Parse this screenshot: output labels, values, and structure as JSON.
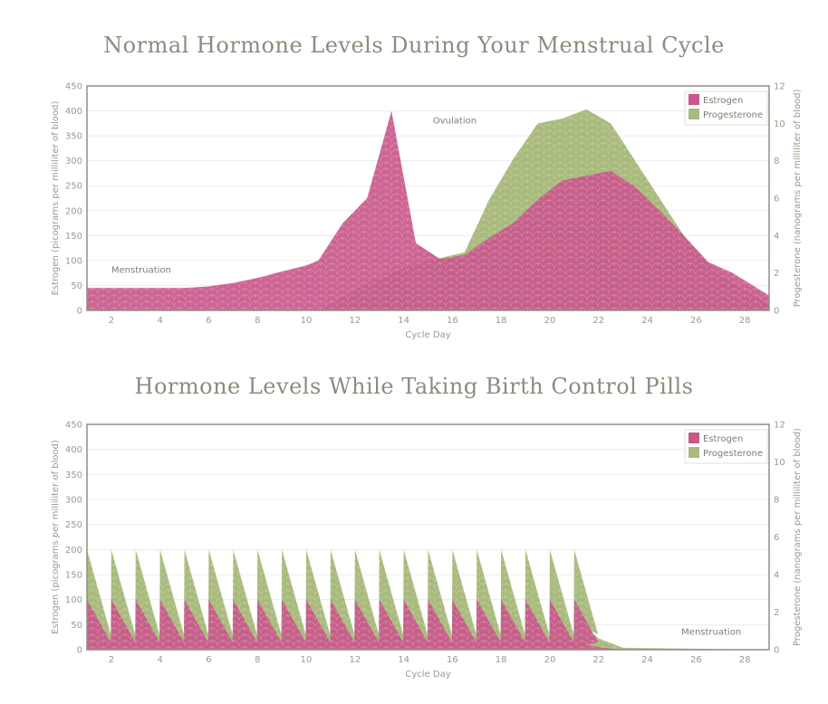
{
  "colors": {
    "estrogen": "#c9578a",
    "progesterone": "#a9ba7d",
    "axis": "#8f8f84",
    "grid": "#ececec"
  },
  "chart_data": [
    {
      "type": "area",
      "title": "Normal Hormone Levels During Your Menstrual Cycle",
      "xlabel": "Cycle Day",
      "ylabel": "Estrogen (picograms per milliliter of blood)",
      "y2label": "Progesterone (nanograms per milliliter of blood)",
      "xlim": [
        1,
        29
      ],
      "ylim": [
        0,
        450
      ],
      "y2lim": [
        0,
        12
      ],
      "xticks": [
        2,
        4,
        6,
        8,
        10,
        12,
        14,
        16,
        18,
        20,
        22,
        24,
        26,
        28
      ],
      "yticks": [
        0,
        50,
        100,
        150,
        200,
        250,
        300,
        350,
        400,
        450
      ],
      "y2ticks": [
        0,
        2,
        4,
        6,
        8,
        10,
        12
      ],
      "grid": true,
      "legend_position": "top-right",
      "annotations": [
        {
          "text": "Menstruation",
          "x": 2,
          "y": 75
        },
        {
          "text": "Ovulation",
          "x": 15.2,
          "y": 375
        }
      ],
      "series": [
        {
          "name": "Estrogen",
          "axis": "left",
          "x": [
            1,
            2,
            3,
            4,
            5,
            6,
            7,
            8,
            9,
            10,
            10.5,
            11.5,
            12.5,
            13.5,
            14.5,
            15.5,
            16.5,
            17.5,
            18.5,
            19.5,
            20.5,
            21.5,
            22.5,
            23.5,
            24.5,
            25.5,
            26.5,
            27.5,
            28.5,
            29
          ],
          "y": [
            45,
            45,
            45,
            45,
            45,
            48,
            55,
            65,
            78,
            90,
            100,
            175,
            225,
            400,
            135,
            103,
            111,
            145,
            175,
            222,
            260,
            270,
            280,
            248,
            200,
            150,
            97,
            75,
            45,
            30
          ]
        },
        {
          "name": "Progesterone",
          "axis": "right",
          "x": [
            1,
            10.5,
            11.5,
            12.5,
            13.5,
            14.5,
            15.5,
            16.5,
            17.5,
            18.5,
            19.5,
            20.5,
            21.5,
            22.5,
            23.5,
            24.5,
            25.5,
            26.5,
            27.5,
            28.5,
            29
          ],
          "y": [
            0,
            0,
            0.7,
            1.4,
            2.0,
            2.5,
            2.8,
            3.1,
            5.9,
            8.1,
            10.0,
            10.25,
            10.75,
            10.0,
            8.0,
            6.0,
            4.0,
            2.5,
            1.5,
            0.7,
            0.3
          ]
        }
      ]
    },
    {
      "type": "area",
      "title": "Hormone Levels While Taking Birth Control Pills",
      "xlabel": "Cycle Day",
      "ylabel": "Estrogen (picograms per milliliter of blood)",
      "y2label": "Progesterone (nanograms per milliliter of blood)",
      "xlim": [
        1,
        29
      ],
      "ylim": [
        0,
        450
      ],
      "y2lim": [
        0,
        12
      ],
      "xticks": [
        2,
        4,
        6,
        8,
        10,
        12,
        14,
        16,
        18,
        20,
        22,
        24,
        26,
        28
      ],
      "yticks": [
        0,
        50,
        100,
        150,
        200,
        250,
        300,
        350,
        400,
        450
      ],
      "y2ticks": [
        0,
        2,
        4,
        6,
        8,
        10,
        12
      ],
      "grid": true,
      "legend_position": "top-right",
      "annotations": [
        {
          "text": "Menstruation",
          "x": 25.4,
          "y": 30
        }
      ],
      "series": [
        {
          "name": "Estrogen",
          "axis": "left",
          "pills": {
            "start_day": 1,
            "end_day": 21,
            "peak": 100,
            "trough": 15
          },
          "x": [
            21.5,
            22,
            23,
            29
          ],
          "y": [
            10,
            5,
            0,
            0
          ]
        },
        {
          "name": "Progesterone",
          "axis": "right",
          "pills": {
            "start_day": 1,
            "end_day": 21,
            "peak": 5.33,
            "trough": 0.8
          },
          "x": [
            21.5,
            22,
            23,
            29
          ],
          "y": [
            1.2,
            0.6,
            0.1,
            0
          ]
        }
      ]
    }
  ]
}
